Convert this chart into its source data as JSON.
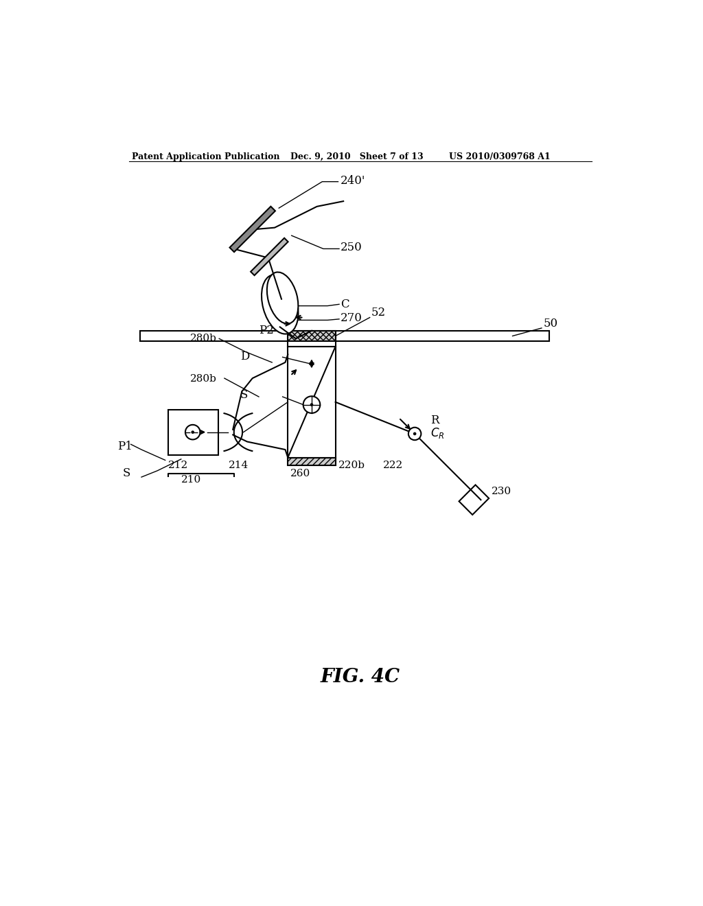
{
  "bg_color": "#ffffff",
  "header_left": "Patent Application Publication",
  "header_mid": "Dec. 9, 2010   Sheet 7 of 13",
  "header_right": "US 2010/0309768 A1",
  "caption": "FIG. 4C",
  "lw": 1.5,
  "thin_lw": 1.0,
  "text_color": "#000000"
}
